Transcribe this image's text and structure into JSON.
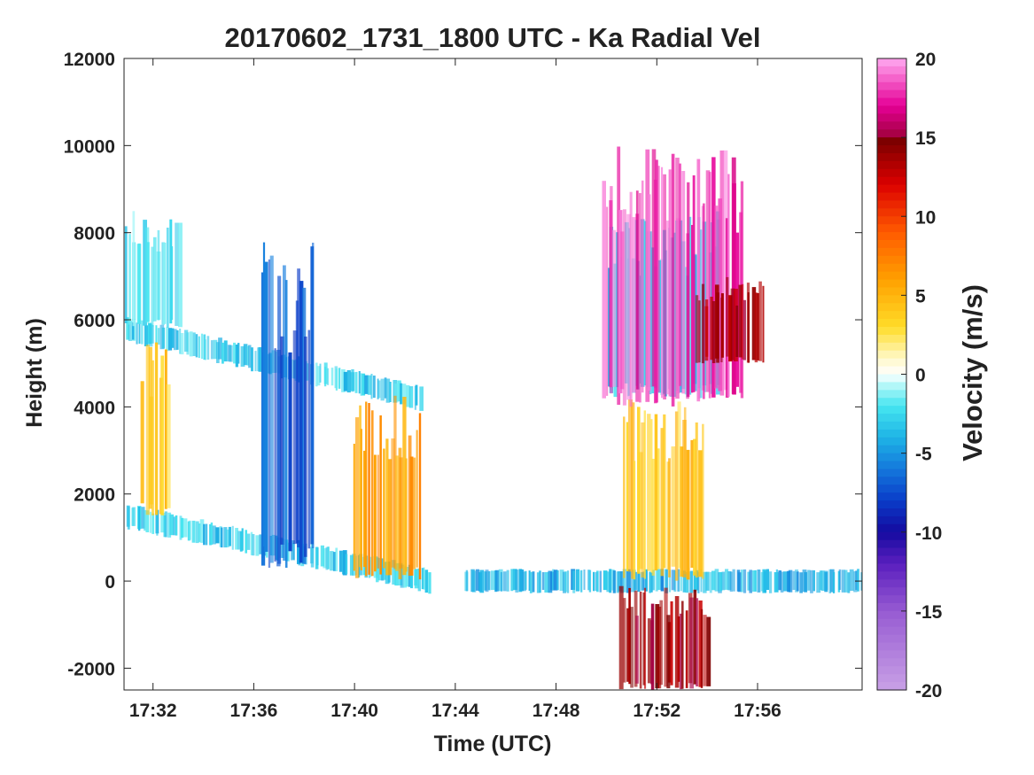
{
  "chart_data": {
    "type": "heatmap",
    "title": "20170602_1731_1800 UTC - Ka Radial Vel",
    "xlabel": "Time (UTC)",
    "ylabel": "Height (m)",
    "x_ticks": [
      "17:32",
      "17:36",
      "17:40",
      "17:44",
      "17:48",
      "17:52",
      "17:56"
    ],
    "x_tick_minutes": [
      32,
      36,
      40,
      44,
      48,
      52,
      56
    ],
    "xlim_minutes": [
      30.85,
      60.15
    ],
    "y_ticks": [
      12000,
      10000,
      8000,
      6000,
      4000,
      2000,
      0,
      -2000
    ],
    "y_tick_labels": [
      "12000",
      "10000",
      "8000",
      "6000",
      "4000",
      "2000",
      "0",
      "-2000"
    ],
    "ylim": [
      -2500,
      12000
    ],
    "colorbar": {
      "label": "Velocity (m/s)",
      "range": [
        -20,
        20
      ],
      "ticks": [
        20,
        15,
        10,
        5,
        0,
        -5,
        -10,
        -15,
        -20
      ],
      "tick_labels": [
        "20",
        "15",
        "10",
        "5",
        "0",
        "-5",
        "-10",
        "-15",
        "-20"
      ]
    },
    "features": [
      {
        "name": "surface layer west",
        "t": [
          30.85,
          43.0
        ],
        "height_start": 1500,
        "height_end": 0,
        "velocity": -3
      },
      {
        "name": "surface layer east",
        "t": [
          44.3,
          60.15
        ],
        "height": 0,
        "velocity": -4
      },
      {
        "name": "melting layer",
        "t": [
          30.85,
          42.6
        ],
        "height_start": 5800,
        "height_end": 4200,
        "velocity": -3
      },
      {
        "name": "anvil west",
        "t": [
          30.85,
          33.0
        ],
        "height": [
          5800,
          8500
        ],
        "velocity": -2
      },
      {
        "name": "fall streaks 17:32",
        "t": [
          31.5,
          32.6
        ],
        "height": [
          1500,
          5500
        ],
        "velocity": 4
      },
      {
        "name": "fall streaks 17:37",
        "t": [
          36.2,
          38.4
        ],
        "height": [
          300,
          7800
        ],
        "velocity": -7
      },
      {
        "name": "rain shaft 17:40",
        "t": [
          39.9,
          42.6
        ],
        "height": [
          0,
          4300
        ],
        "velocity": 6
      },
      {
        "name": "convective core",
        "t": [
          50.6,
          53.8
        ],
        "height": [
          0,
          4200
        ],
        "velocity": 4
      },
      {
        "name": "updraft tower",
        "t": [
          50.0,
          54.5
        ],
        "height": [
          4200,
          8500
        ],
        "velocity": -3
      },
      {
        "name": "upper anvil",
        "t": [
          49.8,
          55.4
        ],
        "height": [
          4000,
          10000
        ],
        "velocity": 18
      },
      {
        "name": "downdraft east",
        "t": [
          53.5,
          56.2
        ],
        "height": [
          5000,
          7000
        ],
        "velocity": 14
      },
      {
        "name": "below-ground artifact",
        "t": [
          50.5,
          54.0
        ],
        "height": [
          -2500,
          -100
        ],
        "velocity": 14
      }
    ]
  }
}
